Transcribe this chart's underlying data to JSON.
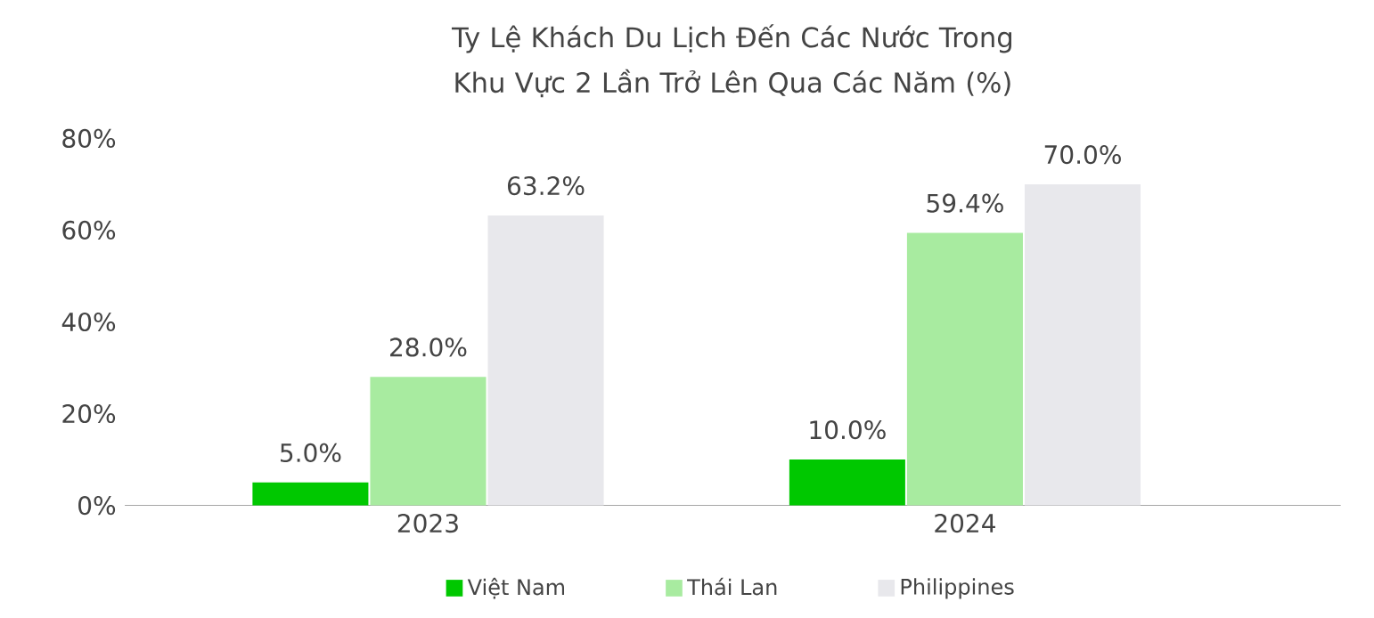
{
  "chart_data": {
    "type": "bar",
    "title": "Ty Lệ Khách Du Lịch Đến Các Nước Trong Khu Vực 2 Lần Trở Lên Qua Các Năm (%)",
    "categories": [
      "2023",
      "2024"
    ],
    "series": [
      {
        "name": "Việt Nam",
        "color": "#00c800",
        "values": [
          5.0,
          10.0
        ],
        "value_labels": [
          "5.0%",
          "10.0%"
        ]
      },
      {
        "name": "Thái Lan",
        "color": "#a8eba0",
        "values": [
          28.0,
          59.4
        ],
        "value_labels": [
          "28.0%",
          "59.4%"
        ]
      },
      {
        "name": "Philippines",
        "color": "#e8e8ec",
        "values": [
          63.2,
          70.0
        ],
        "value_labels": [
          "63.2%",
          "70.0%"
        ]
      }
    ],
    "ylim": [
      0,
      80
    ],
    "yticks": [
      {
        "value": 0,
        "label": "0%"
      },
      {
        "value": 20,
        "label": "20%"
      },
      {
        "value": 40,
        "label": "40%"
      },
      {
        "value": 60,
        "label": "60%"
      },
      {
        "value": 80,
        "label": "80%"
      }
    ],
    "legend": "bottom"
  }
}
